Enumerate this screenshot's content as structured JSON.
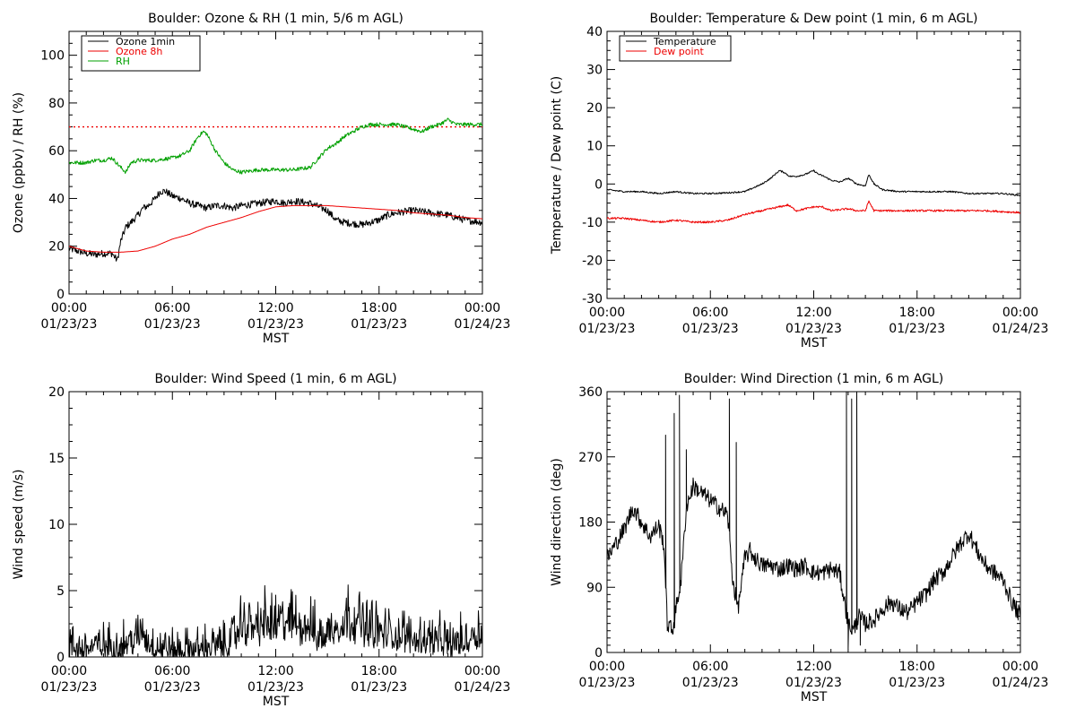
{
  "figure": {
    "x_tick_time_labels": [
      "00:00",
      "06:00",
      "12:00",
      "18:00",
      "00:00"
    ],
    "x_tick_date_labels": [
      "01/23/23",
      "01/23/23",
      "01/23/23",
      "01/23/23",
      "01/24/23"
    ],
    "xlabel": "MST"
  },
  "colors": {
    "black": "#000000",
    "red": "#ee0000",
    "green": "#00a000"
  },
  "chart_data": [
    {
      "id": "ozone_rh",
      "type": "line",
      "title": "Boulder: Ozone & RH (1 min, 5/6 m AGL)",
      "xlabel": "MST",
      "ylabel": "Ozone (ppbv) / RH (%)",
      "xlim": [
        "2023-01-23 00:00",
        "2023-01-24 00:00"
      ],
      "ylim": [
        0,
        110
      ],
      "yticks": [
        0,
        20,
        40,
        60,
        80,
        100
      ],
      "legend_position": "top-left",
      "reference_line": {
        "y": 70,
        "style": "dotted",
        "color": "#ee0000"
      },
      "series": [
        {
          "name": "Ozone 1min",
          "color": "#000000",
          "noise": 1.5,
          "x_hours": [
            0,
            1,
            1.5,
            2,
            2.5,
            2.8,
            3,
            3.3,
            3.6,
            4,
            4.3,
            4.6,
            5,
            5.3,
            5.6,
            6,
            6.5,
            7,
            7.5,
            8,
            8.5,
            9,
            9.5,
            10,
            11,
            12,
            12.5,
            13,
            14,
            15,
            15.5,
            16,
            17,
            18,
            18.5,
            19,
            20,
            21,
            22,
            23,
            24
          ],
          "y": [
            19,
            17,
            16.5,
            17,
            17,
            14,
            22,
            28,
            30,
            33,
            36,
            37,
            40,
            43,
            43,
            41,
            40,
            38,
            37,
            36,
            37,
            37,
            36,
            37,
            38,
            39,
            38,
            39,
            38,
            35,
            31,
            30,
            29,
            31,
            33,
            34,
            35,
            34,
            33,
            31,
            30
          ]
        },
        {
          "name": "Ozone 8h",
          "color": "#ee0000",
          "noise": 0,
          "x_hours": [
            0,
            1,
            2,
            3,
            4,
            5,
            6,
            7,
            8,
            9,
            10,
            11,
            12,
            13,
            14,
            15,
            16,
            17,
            18,
            19,
            20,
            21,
            22,
            23,
            24
          ],
          "y": [
            20,
            18,
            17.5,
            17.5,
            18,
            20,
            23,
            25,
            28,
            30,
            32,
            34.5,
            36.5,
            37,
            37,
            37,
            36.5,
            36,
            35.5,
            35,
            34,
            33.5,
            33,
            32,
            31.5
          ]
        },
        {
          "name": "RH",
          "color": "#00a000",
          "noise": 0.8,
          "x_hours": [
            0,
            1,
            1.5,
            2,
            2.5,
            3,
            3.3,
            3.6,
            4,
            5,
            6,
            6.5,
            7,
            7.5,
            7.8,
            8,
            8.5,
            9,
            9.5,
            10,
            11,
            12,
            13,
            14,
            15,
            15.5,
            16,
            16.5,
            17,
            17.5,
            18,
            19,
            20,
            20.5,
            21,
            21.5,
            22,
            22.5,
            23,
            24
          ],
          "y": [
            55,
            55,
            56,
            56,
            57,
            53,
            51,
            55,
            56,
            56,
            57,
            58,
            60,
            66,
            68,
            67,
            60,
            55,
            52,
            51,
            52,
            52,
            52,
            53,
            61,
            63,
            66,
            68,
            70,
            71,
            71,
            71,
            69,
            68,
            70,
            71,
            73,
            71,
            71,
            71
          ]
        }
      ]
    },
    {
      "id": "temp_dew",
      "type": "line",
      "title": "Boulder: Temperature & Dew point (1 min, 6 m AGL)",
      "xlabel": "MST",
      "ylabel": "Temperature / Dew point (C)",
      "xlim": [
        "2023-01-23 00:00",
        "2023-01-24 00:00"
      ],
      "ylim": [
        -30,
        40
      ],
      "yticks": [
        -30,
        -20,
        -10,
        0,
        10,
        20,
        30,
        40
      ],
      "legend_position": "top-left",
      "series": [
        {
          "name": "Temperature",
          "color": "#000000",
          "noise": 0.2,
          "x_hours": [
            0,
            1,
            2,
            3,
            4,
            5,
            6,
            7,
            8,
            8.5,
            9,
            9.5,
            10,
            10.3,
            10.6,
            11,
            11.5,
            12,
            12.3,
            12.6,
            13,
            13.5,
            14,
            14.5,
            15,
            15.2,
            15.5,
            16,
            17,
            18,
            19,
            20,
            21,
            22,
            23,
            24
          ],
          "y": [
            -1.5,
            -2,
            -2,
            -2.5,
            -2,
            -2.5,
            -2.5,
            -2.3,
            -2,
            -1,
            0,
            1.5,
            3.5,
            3,
            2,
            2,
            2.5,
            3.5,
            2.5,
            2,
            1,
            0.5,
            1.5,
            0,
            -0.5,
            2.5,
            0,
            -1.5,
            -2,
            -2,
            -2,
            -2,
            -2.5,
            -2.5,
            -2.5,
            -3
          ]
        },
        {
          "name": "Dew point",
          "color": "#ee0000",
          "noise": 0.25,
          "x_hours": [
            0,
            1,
            2,
            3,
            4,
            5,
            6,
            7,
            8,
            9,
            10,
            10.5,
            11,
            12,
            12.5,
            13,
            14,
            14.5,
            15,
            15.2,
            15.5,
            16,
            18,
            20,
            22,
            24
          ],
          "y": [
            -9,
            -9,
            -9.5,
            -10,
            -9.5,
            -10,
            -10,
            -9.5,
            -8,
            -7,
            -6,
            -5.5,
            -7,
            -6,
            -6,
            -7,
            -6.5,
            -7,
            -7,
            -4.5,
            -7,
            -7,
            -7,
            -7,
            -7,
            -7.5
          ]
        }
      ]
    },
    {
      "id": "wind_speed",
      "type": "line",
      "title": "Boulder: Wind Speed (1 min, 6 m AGL)",
      "xlabel": "MST",
      "ylabel": "Wind speed (m/s)",
      "xlim": [
        "2023-01-23 00:00",
        "2023-01-24 00:00"
      ],
      "ylim": [
        0,
        20
      ],
      "yticks": [
        0,
        5,
        10,
        15,
        20
      ],
      "series": [
        {
          "color": "#000000",
          "noise": 1.2,
          "x_hours": [
            0,
            1,
            2,
            3,
            4,
            4.2,
            4.5,
            5,
            6,
            7,
            8,
            9,
            9.5,
            10,
            11,
            12,
            13,
            14,
            14.5,
            15,
            16,
            16.5,
            17,
            18,
            19,
            20,
            20.5,
            21,
            22,
            23,
            23.5,
            24
          ],
          "y": [
            0.8,
            0.8,
            0.9,
            1,
            1.5,
            2.2,
            1.4,
            0.9,
            0.6,
            0.6,
            0.8,
            1,
            1.5,
            2.5,
            2.7,
            2.8,
            2.8,
            2.5,
            1.5,
            2,
            3,
            3.2,
            2.8,
            2,
            1.8,
            1.6,
            1.5,
            1.5,
            1.2,
            1.3,
            2,
            2
          ]
        }
      ]
    },
    {
      "id": "wind_dir",
      "type": "line",
      "title": "Boulder: Wind Direction (1 min, 6 m AGL)",
      "xlabel": "MST",
      "ylabel": "Wind direction (deg)",
      "xlim": [
        "2023-01-23 00:00",
        "2023-01-24 00:00"
      ],
      "ylim": [
        0,
        360
      ],
      "yticks": [
        0,
        90,
        180,
        270,
        360
      ],
      "series": [
        {
          "color": "#000000",
          "noise": 12,
          "x_hours": [
            0,
            0.5,
            1,
            1.5,
            2,
            2.5,
            3,
            3.3,
            3.5,
            3.8,
            4,
            4.3,
            4.6,
            5,
            5.5,
            6,
            6.5,
            7,
            7.3,
            7.6,
            8,
            8.3,
            8.6,
            9,
            9.5,
            10,
            10.5,
            11,
            11.5,
            12,
            12.5,
            13,
            13.5,
            14,
            14.3,
            14.6,
            15,
            15.5,
            16,
            16.5,
            17,
            17.5,
            18,
            18.5,
            19,
            19.5,
            20,
            20.5,
            21,
            21.5,
            22,
            22.5,
            23,
            23.5,
            24
          ],
          "y": [
            130,
            150,
            170,
            200,
            180,
            160,
            175,
            150,
            40,
            30,
            60,
            100,
            200,
            230,
            220,
            210,
            200,
            190,
            100,
            60,
            130,
            140,
            130,
            120,
            120,
            115,
            120,
            115,
            120,
            110,
            110,
            115,
            110,
            40,
            30,
            50,
            40,
            45,
            60,
            70,
            60,
            55,
            70,
            80,
            100,
            110,
            130,
            150,
            165,
            140,
            120,
            110,
            100,
            70,
            50
          ],
          "spikes": [
            [
              3.4,
              300
            ],
            [
              3.9,
              330
            ],
            [
              4.2,
              355
            ],
            [
              4.6,
              280
            ],
            [
              7.1,
              350
            ],
            [
              7.5,
              290
            ],
            [
              13.9,
              360
            ],
            [
              14.0,
              5
            ],
            [
              14.2,
              350
            ],
            [
              14.5,
              360
            ],
            [
              14.7,
              10
            ]
          ]
        }
      ]
    }
  ]
}
